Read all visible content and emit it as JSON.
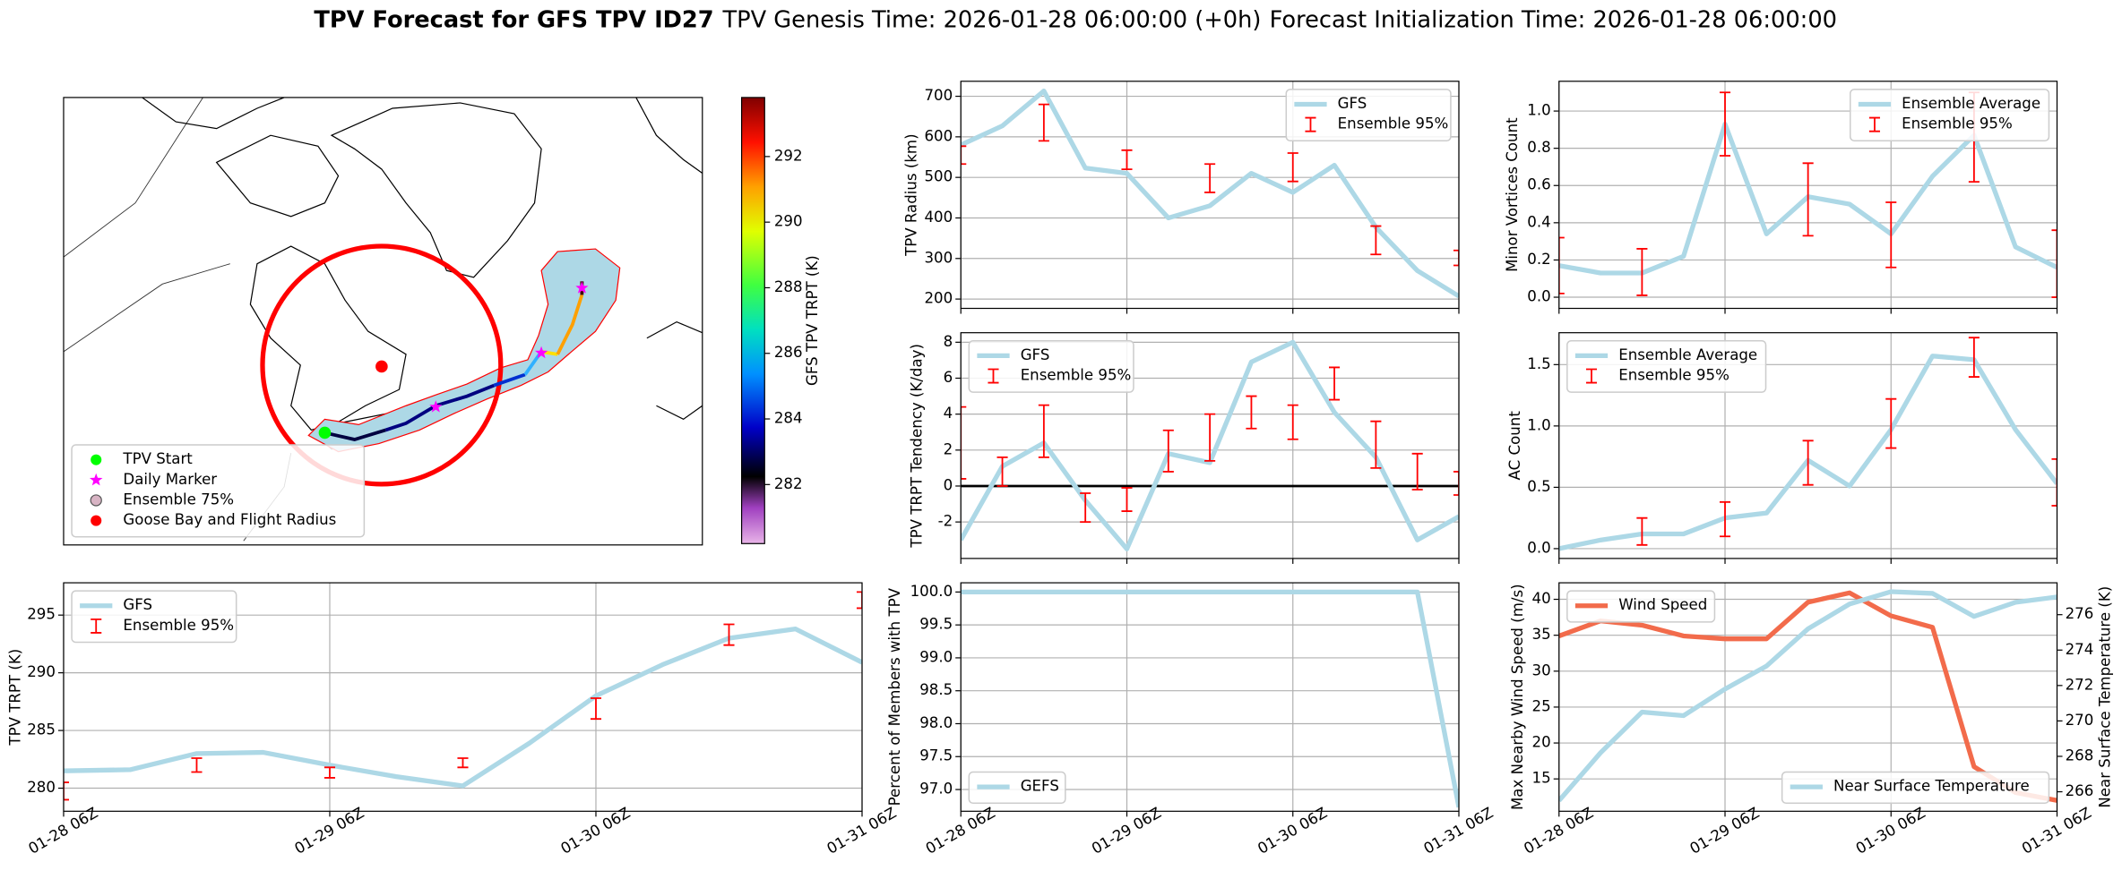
{
  "header": {
    "title": "TPV Forecast for GFS TPV ID27",
    "genesis": "TPV Genesis Time: 2026-01-28 06:00:00 (+0h)",
    "init": "Forecast Initialization Time: 2026-01-28 06:00:00"
  },
  "chart_data": [
    {
      "type": "map",
      "legend_loc": "lower left",
      "legend": [
        {
          "name": "TPV Start",
          "color": "#00ff00",
          "marker": "o"
        },
        {
          "name": "Daily Marker",
          "color": "#ff00ff",
          "marker": "*"
        },
        {
          "name": "Ensemble 75%",
          "color": "#d8b4c4",
          "edgecolor": "#555555",
          "marker": "o"
        },
        {
          "name": "Goose Bay and Flight Radius",
          "color": "#ff0000",
          "marker": "o"
        }
      ],
      "colorbar": {
        "label": "GFS TPV TRPT (K)",
        "lim": [
          280.2,
          293.8
        ],
        "ticks": [
          282,
          284,
          286,
          288,
          290,
          292
        ]
      }
    },
    {
      "type": "line",
      "ylabel": "TPV Radius (km)",
      "xlim": [
        0,
        72
      ],
      "xticks": [
        0,
        24,
        48,
        72
      ],
      "xtick_labels": false,
      "ylim": [
        177,
        737
      ],
      "yticks": [
        200,
        300,
        400,
        500,
        600,
        700
      ],
      "grid": true,
      "legend": "upper right",
      "series": [
        {
          "name": "GFS",
          "color": "#add8e6",
          "x": [
            0,
            6,
            12,
            18,
            24,
            30,
            36,
            42,
            48,
            54,
            60,
            66,
            72
          ],
          "values": [
            580,
            627,
            713,
            523,
            510,
            400,
            430,
            510,
            463,
            530,
            377,
            270,
            207
          ]
        },
        {
          "name": "Ensemble 95%",
          "color": "#ff0000",
          "style": "errorbar",
          "x": [
            0,
            12,
            24,
            36,
            48,
            60,
            72
          ],
          "lower": [
            533,
            590,
            520,
            463,
            490,
            310,
            283
          ],
          "upper": [
            577,
            680,
            567,
            533,
            560,
            380,
            320
          ]
        }
      ]
    },
    {
      "type": "line",
      "ylabel": "Minor Vortices Count",
      "xlim": [
        0,
        72
      ],
      "xticks": [
        0,
        24,
        48,
        72
      ],
      "xtick_labels": false,
      "ylim": [
        -0.06,
        1.16
      ],
      "yticks": [
        {
          "value": 0,
          "label": "0.0"
        },
        0.2,
        0.4,
        0.6,
        0.8,
        {
          "value": 1,
          "label": "1.0"
        }
      ],
      "grid": true,
      "legend": "upper right",
      "series": [
        {
          "name": "Ensemble Average",
          "color": "#add8e6",
          "x": [
            0,
            6,
            12,
            18,
            24,
            30,
            36,
            42,
            48,
            54,
            60,
            66,
            72
          ],
          "values": [
            0.17,
            0.13,
            0.13,
            0.22,
            0.93,
            0.34,
            0.54,
            0.5,
            0.34,
            0.65,
            0.87,
            0.27,
            0.16
          ]
        },
        {
          "name": "Ensemble 95%",
          "color": "#ff0000",
          "style": "errorbar",
          "x": [
            0,
            12,
            24,
            36,
            48,
            60,
            72
          ],
          "lower": [
            0.02,
            0.01,
            0.76,
            0.33,
            0.16,
            0.62,
            0.0
          ],
          "upper": [
            0.32,
            0.26,
            1.1,
            0.72,
            0.51,
            1.1,
            0.36
          ]
        }
      ]
    },
    {
      "type": "line",
      "ylabel": "TPV TRPT Tendency (K/day)",
      "xlim": [
        0,
        72
      ],
      "xticks": [
        0,
        24,
        48,
        72
      ],
      "xtick_labels": false,
      "ylim": [
        -4.03,
        8.53
      ],
      "yticks": [
        -2,
        0,
        2,
        4,
        6,
        8
      ],
      "grid": true,
      "legend": "upper left",
      "hline": 0,
      "series": [
        {
          "name": "GFS",
          "color": "#add8e6",
          "x": [
            0,
            6,
            12,
            18,
            24,
            30,
            36,
            42,
            48,
            54,
            60,
            66,
            72
          ],
          "values": [
            -3.0,
            1.1,
            2.4,
            -0.8,
            -3.5,
            1.8,
            1.3,
            6.9,
            8.0,
            4.1,
            1.6,
            -3.0,
            -1.7
          ]
        },
        {
          "name": "Ensemble 95%",
          "color": "#ff0000",
          "style": "errorbar",
          "x": [
            0,
            6,
            12,
            18,
            24,
            30,
            36,
            42,
            48,
            54,
            60,
            66,
            72
          ],
          "lower": [
            0.4,
            0.0,
            1.6,
            -2.0,
            -1.4,
            0.8,
            1.4,
            3.2,
            2.6,
            4.8,
            1.0,
            -0.2,
            -0.5
          ],
          "upper": [
            4.4,
            1.6,
            4.5,
            -0.4,
            -0.1,
            3.1,
            4.0,
            5.0,
            4.5,
            6.6,
            3.6,
            1.8,
            0.8
          ]
        }
      ]
    },
    {
      "type": "line",
      "ylabel": "AC Count",
      "xlim": [
        0,
        72
      ],
      "xticks": [
        0,
        24,
        48,
        72
      ],
      "xtick_labels": false,
      "ylim": [
        -0.08,
        1.76
      ],
      "yticks": [
        {
          "value": 0,
          "label": "0.0"
        },
        0.5,
        {
          "value": 1,
          "label": "1.0"
        },
        1.5
      ],
      "grid": true,
      "legend": "upper left",
      "series": [
        {
          "name": "Ensemble Average",
          "color": "#add8e6",
          "x": [
            0,
            6,
            12,
            18,
            24,
            30,
            36,
            42,
            48,
            54,
            60,
            66,
            72
          ],
          "values": [
            0,
            0.07,
            0.12,
            0.12,
            0.25,
            0.29,
            0.72,
            0.51,
            0.97,
            1.57,
            1.54,
            0.97,
            0.53
          ]
        },
        {
          "name": "Ensemble 95%",
          "color": "#ff0000",
          "style": "errorbar",
          "x": [
            12,
            24,
            36,
            48,
            60,
            72
          ],
          "lower": [
            0.03,
            0.1,
            0.52,
            0.82,
            1.4,
            0.35
          ],
          "upper": [
            0.25,
            0.38,
            0.88,
            1.22,
            1.72,
            0.73
          ]
        }
      ]
    },
    {
      "type": "line",
      "ylabel": "TPV TRPT (K)",
      "xlim": [
        0,
        72
      ],
      "xticks": [
        {
          "value": 0,
          "label": "01-28 06Z"
        },
        {
          "value": 24,
          "label": "01-29 06Z"
        },
        {
          "value": 48,
          "label": "01-30 06Z"
        },
        {
          "value": 72,
          "label": "01-31 06Z"
        }
      ],
      "ylim": [
        278,
        297.8
      ],
      "yticks": [
        280,
        285,
        290,
        295
      ],
      "grid": true,
      "legend": "upper left",
      "series": [
        {
          "name": "GFS",
          "color": "#add8e6",
          "x": [
            0,
            6,
            12,
            18,
            24,
            30,
            36,
            42,
            48,
            54,
            60,
            66,
            72
          ],
          "values": [
            281.5,
            281.6,
            283.0,
            283.1,
            282.0,
            281.0,
            280.2,
            283.9,
            288.0,
            290.7,
            293.0,
            293.8,
            290.9
          ]
        },
        {
          "name": "Ensemble 95%",
          "color": "#ff0000",
          "style": "errorbar",
          "x": [
            0,
            12,
            24,
            36,
            48,
            60,
            72
          ],
          "lower": [
            279,
            281.4,
            280.9,
            281.8,
            286.0,
            292.4,
            295.6
          ],
          "upper": [
            280.5,
            282.6,
            281.8,
            282.6,
            287.8,
            294.2,
            297.0
          ]
        }
      ]
    },
    {
      "type": "line",
      "ylabel": "Percent of Members with TPV",
      "xlim": [
        0,
        72
      ],
      "xticks": [
        {
          "value": 0,
          "label": "01-28 06Z"
        },
        {
          "value": 24,
          "label": "01-29 06Z"
        },
        {
          "value": 48,
          "label": "01-30 06Z"
        },
        {
          "value": 72,
          "label": "01-31 06Z"
        }
      ],
      "ylim": [
        96.67,
        100.14
      ],
      "yticks": [
        {
          "value": 97,
          "label": "97.0"
        },
        97.5,
        {
          "value": 98,
          "label": "98.0"
        },
        98.5,
        {
          "value": 99,
          "label": "99.0"
        },
        99.5,
        {
          "value": 100,
          "label": "100.0"
        }
      ],
      "grid": true,
      "legend": "lower left",
      "series": [
        {
          "name": "GEFS",
          "color": "#add8e6",
          "x": [
            0,
            6,
            12,
            18,
            24,
            30,
            36,
            42,
            48,
            54,
            60,
            66,
            72
          ],
          "values": [
            100,
            100,
            100,
            100,
            100,
            100,
            100,
            100,
            100,
            100,
            100,
            100,
            96.73
          ]
        }
      ]
    },
    {
      "type": "line",
      "ylabel": "Max Nearby Wind Speed (m/s)",
      "ylabel_color": "#f26b4b",
      "y2label": "Near Surface Temperature (K)",
      "y2label_color": "#4169e1",
      "xlim": [
        0,
        72
      ],
      "xticks": [
        {
          "value": 0,
          "label": "01-28 06Z"
        },
        {
          "value": 24,
          "label": "01-29 06Z"
        },
        {
          "value": 48,
          "label": "01-30 06Z"
        },
        {
          "value": 72,
          "label": "01-31 06Z"
        }
      ],
      "ylim": [
        10.5,
        42.3
      ],
      "yticks": [
        15,
        20,
        25,
        30,
        35,
        40
      ],
      "y2lim": [
        264.9,
        277.8
      ],
      "y2ticks": [
        266,
        268,
        270,
        272,
        274,
        276
      ],
      "grid": true,
      "legend": "upper left",
      "legend2": "lower right",
      "series": [
        {
          "name": "Wind Speed",
          "color": "#f26b4b",
          "x": [
            0,
            6,
            12,
            18,
            24,
            30,
            36,
            42,
            48,
            54,
            60,
            66,
            72
          ],
          "values": [
            34.9,
            37.0,
            36.4,
            34.9,
            34.5,
            34.5,
            39.6,
            40.9,
            37.7,
            36.1,
            16.7,
            13.1,
            12.0
          ]
        },
        {
          "name": "Near Surface Temperature",
          "color": "#add8e6",
          "axis": "y2",
          "x": [
            0,
            6,
            12,
            18,
            24,
            30,
            36,
            42,
            48,
            54,
            60,
            66,
            72
          ],
          "values": [
            265.5,
            268.2,
            270.5,
            270.3,
            271.8,
            273.1,
            275.2,
            276.6,
            277.3,
            277.2,
            275.9,
            276.7,
            277.0
          ]
        }
      ]
    }
  ]
}
